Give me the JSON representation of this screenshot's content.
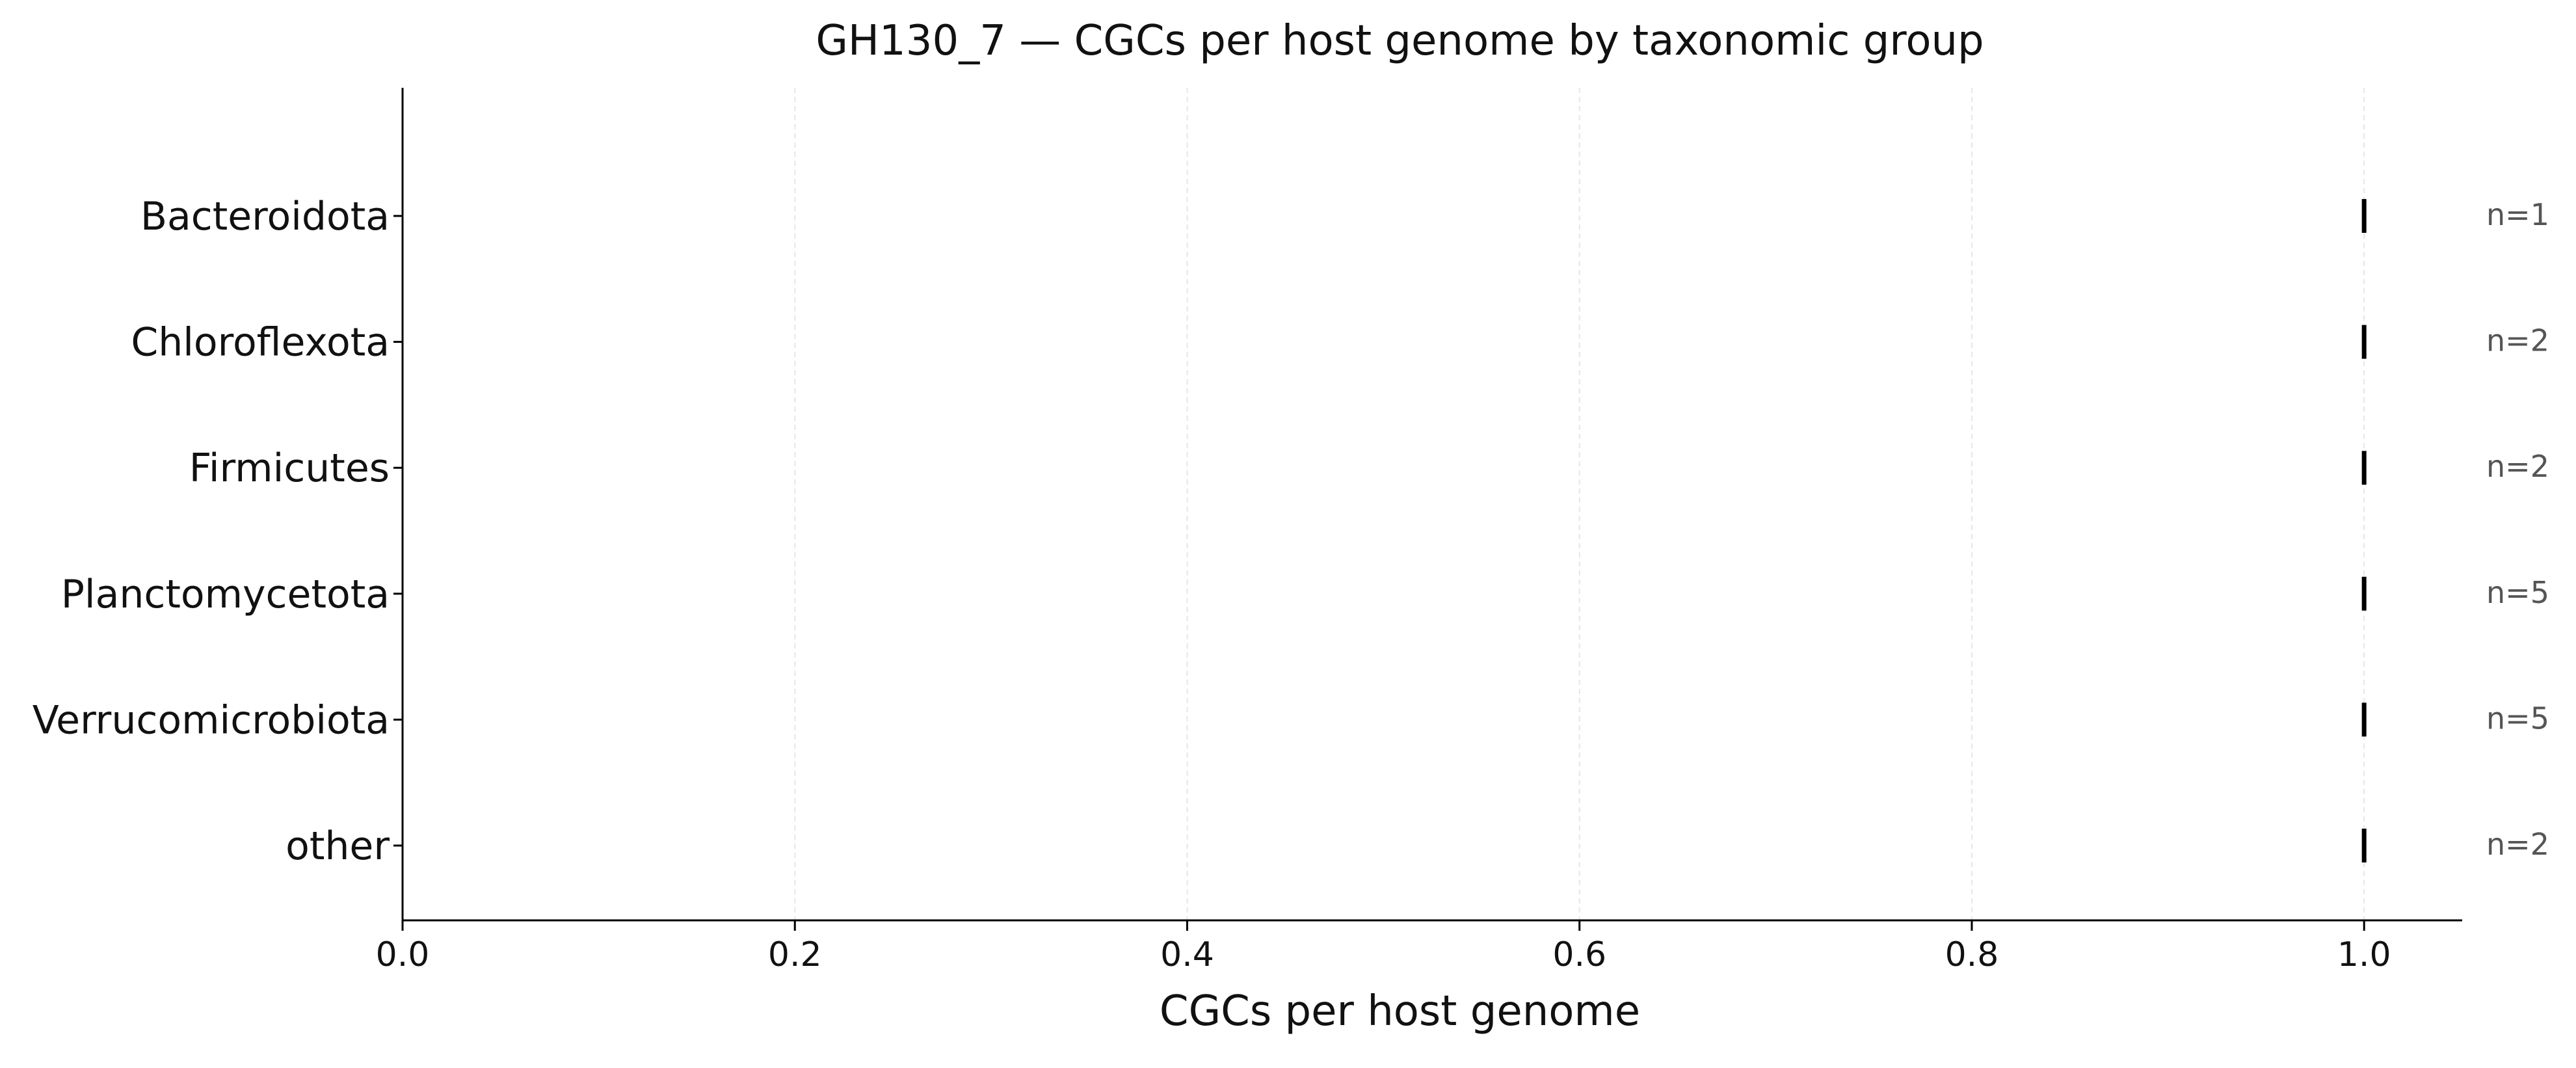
{
  "chart_data": {
    "type": "scatter",
    "title": "GH130_7 — CGCs per host genome by taxonomic group",
    "xlabel": "CGCs per host genome",
    "ylabel": "",
    "xlim": [
      0.0,
      1.05
    ],
    "x_ticks": [
      "0.0",
      "0.2",
      "0.4",
      "0.6",
      "0.8",
      "1.0"
    ],
    "x_tick_values": [
      0.0,
      0.2,
      0.4,
      0.6,
      0.8,
      1.0
    ],
    "grid": "vertical dashed",
    "categories": [
      "Bacteroidota",
      "Chloroflexota",
      "Firmicutes",
      "Planctomycetota",
      "Verrucomicrobiota",
      "other"
    ],
    "values": [
      1.0,
      1.0,
      1.0,
      1.0,
      1.0,
      1.0
    ],
    "counts": [
      "n=1",
      "n=2",
      "n=2",
      "n=5",
      "n=5",
      "n=2"
    ],
    "colors": {
      "marker": "#000000",
      "axis": "#000000",
      "grid": "#e6e6e6",
      "count_text": "#555555",
      "text": "#111111"
    }
  }
}
